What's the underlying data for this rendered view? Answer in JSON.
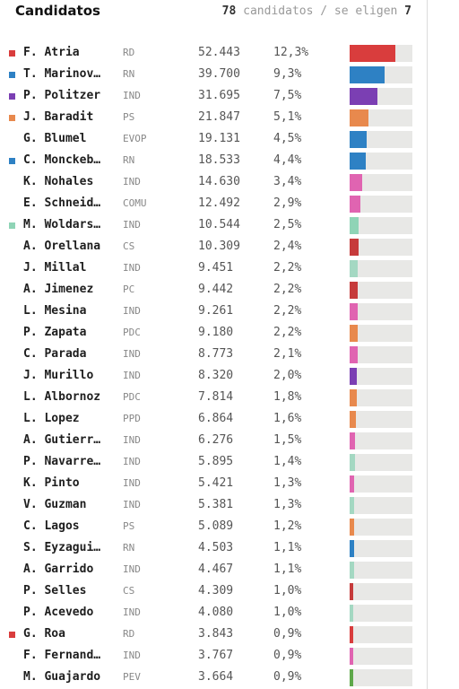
{
  "header": {
    "title": "Candidatos",
    "count": "78",
    "count_label": "candidatos / se eligen",
    "elected": "7"
  },
  "colors": {
    "RD": "#d93d3d",
    "RN": "#2e81c4",
    "IND": "#a4d8c2",
    "PS": "#e8894d",
    "EVOP": "#2e81c4",
    "COMU": "#e064b1",
    "CS": "#c63b3b",
    "PC": "#c63b3b",
    "PDC": "#e8894d",
    "PPD": "#e8894d",
    "PEV": "#5ea84a"
  },
  "candidates": [
    {
      "name": "F. Atria",
      "party": "RD",
      "votes": "52.443",
      "pct": "12,3%",
      "share": 12.3,
      "marker": true,
      "color": "#d93d3d"
    },
    {
      "name": "T. Marinov…",
      "party": "RN",
      "votes": "39.700",
      "pct": "9,3%",
      "share": 9.3,
      "marker": true,
      "color": "#2e81c4"
    },
    {
      "name": "P. Politzer",
      "party": "IND",
      "votes": "31.695",
      "pct": "7,5%",
      "share": 7.5,
      "marker": true,
      "color": "#7b3fb3"
    },
    {
      "name": "J. Baradit",
      "party": "PS",
      "votes": "21.847",
      "pct": "5,1%",
      "share": 5.1,
      "marker": true,
      "color": "#e8894d"
    },
    {
      "name": "G. Blumel",
      "party": "EVOP",
      "votes": "19.131",
      "pct": "4,5%",
      "share": 4.5,
      "marker": false,
      "color": "#2e81c4"
    },
    {
      "name": "C. Monckeb…",
      "party": "RN",
      "votes": "18.533",
      "pct": "4,4%",
      "share": 4.4,
      "marker": true,
      "color": "#2e81c4"
    },
    {
      "name": "K. Nohales",
      "party": "IND",
      "votes": "14.630",
      "pct": "3,4%",
      "share": 3.4,
      "marker": false,
      "color": "#e064b1"
    },
    {
      "name": "E. Schneid…",
      "party": "COMU",
      "votes": "12.492",
      "pct": "2,9%",
      "share": 2.9,
      "marker": false,
      "color": "#e064b1"
    },
    {
      "name": "M. Woldars…",
      "party": "IND",
      "votes": "10.544",
      "pct": "2,5%",
      "share": 2.5,
      "marker": true,
      "color": "#8fd4b6"
    },
    {
      "name": "A. Orellana",
      "party": "CS",
      "votes": "10.309",
      "pct": "2,4%",
      "share": 2.4,
      "marker": false,
      "color": "#c63b3b"
    },
    {
      "name": "J. Millal",
      "party": "IND",
      "votes": "9.451",
      "pct": "2,2%",
      "share": 2.2,
      "marker": false,
      "color": "#a4d8c2"
    },
    {
      "name": "A. Jimenez",
      "party": "PC",
      "votes": "9.442",
      "pct": "2,2%",
      "share": 2.2,
      "marker": false,
      "color": "#c63b3b"
    },
    {
      "name": "L. Mesina",
      "party": "IND",
      "votes": "9.261",
      "pct": "2,2%",
      "share": 2.2,
      "marker": false,
      "color": "#e064b1"
    },
    {
      "name": "P. Zapata",
      "party": "PDC",
      "votes": "9.180",
      "pct": "2,2%",
      "share": 2.2,
      "marker": false,
      "color": "#e8894d"
    },
    {
      "name": "C. Parada",
      "party": "IND",
      "votes": "8.773",
      "pct": "2,1%",
      "share": 2.1,
      "marker": false,
      "color": "#e064b1"
    },
    {
      "name": "J. Murillo",
      "party": "IND",
      "votes": "8.320",
      "pct": "2,0%",
      "share": 2.0,
      "marker": false,
      "color": "#7b3fb3"
    },
    {
      "name": "L. Albornoz",
      "party": "PDC",
      "votes": "7.814",
      "pct": "1,8%",
      "share": 1.8,
      "marker": false,
      "color": "#e8894d"
    },
    {
      "name": "L. Lopez",
      "party": "PPD",
      "votes": "6.864",
      "pct": "1,6%",
      "share": 1.6,
      "marker": false,
      "color": "#e8894d"
    },
    {
      "name": "A. Gutierr…",
      "party": "IND",
      "votes": "6.276",
      "pct": "1,5%",
      "share": 1.5,
      "marker": false,
      "color": "#e064b1"
    },
    {
      "name": "P. Navarre…",
      "party": "IND",
      "votes": "5.895",
      "pct": "1,4%",
      "share": 1.4,
      "marker": false,
      "color": "#a4d8c2"
    },
    {
      "name": "K. Pinto",
      "party": "IND",
      "votes": "5.421",
      "pct": "1,3%",
      "share": 1.3,
      "marker": false,
      "color": "#e064b1"
    },
    {
      "name": "V. Guzman",
      "party": "IND",
      "votes": "5.381",
      "pct": "1,3%",
      "share": 1.3,
      "marker": false,
      "color": "#a4d8c2"
    },
    {
      "name": "C. Lagos",
      "party": "PS",
      "votes": "5.089",
      "pct": "1,2%",
      "share": 1.2,
      "marker": false,
      "color": "#e8894d"
    },
    {
      "name": "S. Eyzagui…",
      "party": "RN",
      "votes": "4.503",
      "pct": "1,1%",
      "share": 1.1,
      "marker": false,
      "color": "#2e81c4"
    },
    {
      "name": "A. Garrido",
      "party": "IND",
      "votes": "4.467",
      "pct": "1,1%",
      "share": 1.1,
      "marker": false,
      "color": "#a4d8c2"
    },
    {
      "name": "P. Selles",
      "party": "CS",
      "votes": "4.309",
      "pct": "1,0%",
      "share": 1.0,
      "marker": false,
      "color": "#c63b3b"
    },
    {
      "name": "P. Acevedo",
      "party": "IND",
      "votes": "4.080",
      "pct": "1,0%",
      "share": 1.0,
      "marker": false,
      "color": "#a4d8c2"
    },
    {
      "name": "G. Roa",
      "party": "RD",
      "votes": "3.843",
      "pct": "0,9%",
      "share": 0.9,
      "marker": true,
      "color": "#d93d3d"
    },
    {
      "name": "F. Fernand…",
      "party": "IND",
      "votes": "3.767",
      "pct": "0,9%",
      "share": 0.9,
      "marker": false,
      "color": "#e064b1"
    },
    {
      "name": "M. Guajardo",
      "party": "PEV",
      "votes": "3.664",
      "pct": "0,9%",
      "share": 0.9,
      "marker": false,
      "color": "#5ea84a"
    }
  ]
}
